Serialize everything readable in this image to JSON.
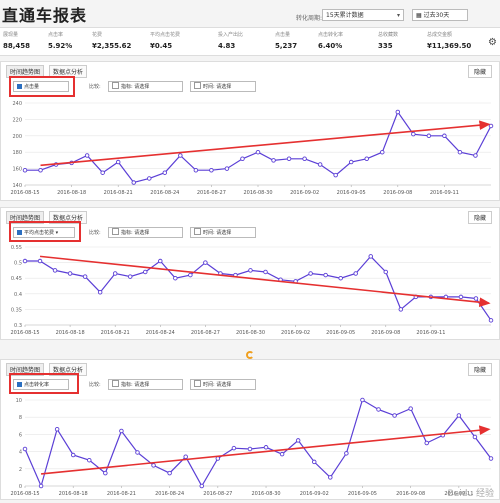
{
  "header": {
    "title": "直通车报表",
    "period_label": "转化周期:",
    "period_value": "15天累计数据",
    "date_value": "过去30天"
  },
  "metrics": [
    {
      "label": "展现量",
      "value": "88,458"
    },
    {
      "label": "点击率",
      "value": "5.92%"
    },
    {
      "label": "花费",
      "value": "¥2,355.62"
    },
    {
      "label": "平均点击花费",
      "value": "¥0.45"
    },
    {
      "label": "投入产出比",
      "value": "4.83"
    },
    {
      "label": "点击量",
      "value": "5,237"
    },
    {
      "label": "点击转化率",
      "value": "6.40%"
    },
    {
      "label": "总收藏数",
      "value": "335"
    },
    {
      "label": "总成交金额",
      "value": "¥11,369.50"
    }
  ],
  "panel_ui": {
    "tab_trend": "时间趋势图",
    "tab_scatter": "数据点分析",
    "hide_button": "隐藏",
    "compare_label": "比较:",
    "indicator_label": "指标:",
    "indicator_value": "请选择",
    "time_label": "时间:",
    "time_value": "请选择"
  },
  "colors": {
    "line": "#5b3fd6",
    "trend_arrow": "#e53030",
    "highlight": "#e53030"
  },
  "panels": [
    {
      "metric": "点击量",
      "chart_data": {
        "type": "line",
        "x_ticks": [
          "2016-08-15",
          "2016-08-18",
          "2016-08-21",
          "2016-08-24",
          "2016-08-27",
          "2016-08-30",
          "2016-09-02",
          "2016-09-05",
          "2016-09-08",
          "2016-09-11"
        ],
        "y_ticks": [
          140,
          160,
          180,
          200,
          220,
          240
        ],
        "ylim": [
          140,
          240
        ],
        "values": [
          158,
          158,
          165,
          167,
          176,
          155,
          168,
          143,
          148,
          155,
          176,
          158,
          158,
          160,
          172,
          180,
          170,
          172,
          172,
          165,
          152,
          168,
          172,
          180,
          229,
          202,
          200,
          200,
          180,
          176,
          212
        ],
        "trend": [
          164,
          214
        ]
      }
    },
    {
      "metric": "平均点击花费",
      "chart_data": {
        "type": "line",
        "x_ticks": [
          "2016-08-15",
          "2016-08-18",
          "2016-08-21",
          "2016-08-24",
          "2016-08-27",
          "2016-08-30",
          "2016-09-02",
          "2016-09-05",
          "2016-09-08",
          "2016-09-11"
        ],
        "y_ticks": [
          0.3,
          0.35,
          0.4,
          0.45,
          0.5,
          0.55
        ],
        "ylim": [
          0.3,
          0.55
        ],
        "values": [
          0.505,
          0.505,
          0.475,
          0.465,
          0.455,
          0.405,
          0.465,
          0.455,
          0.47,
          0.505,
          0.45,
          0.46,
          0.5,
          0.465,
          0.46,
          0.475,
          0.47,
          0.445,
          0.44,
          0.465,
          0.46,
          0.45,
          0.465,
          0.52,
          0.47,
          0.35,
          0.39,
          0.39,
          0.39,
          0.39,
          0.385,
          0.315
        ],
        "trend": [
          0.52,
          0.37
        ]
      }
    },
    {
      "metric": "点击转化率",
      "chart_data": {
        "type": "line",
        "x_ticks": [
          "2016-08-15",
          "2016-08-18",
          "2016-08-21",
          "2016-08-24",
          "2016-08-27",
          "2016-08-30",
          "2016-09-02",
          "2016-09-05",
          "2016-09-08",
          "2016-09-11"
        ],
        "y_ticks": [
          0,
          2,
          4,
          6,
          8,
          10
        ],
        "ylim": [
          0,
          10
        ],
        "values": [
          4.3,
          0,
          6.6,
          3.6,
          3,
          1.5,
          6.4,
          3.9,
          2.4,
          1.5,
          3.4,
          0,
          3.2,
          4.4,
          4.3,
          4.5,
          3.7,
          5.3,
          2.8,
          1,
          3.8,
          10,
          8.9,
          8.2,
          9,
          5,
          5.9,
          8.2,
          5.7,
          3.2
        ],
        "trend": [
          1.4,
          6.6
        ]
      }
    }
  ],
  "watermark": "Baidu 经验"
}
